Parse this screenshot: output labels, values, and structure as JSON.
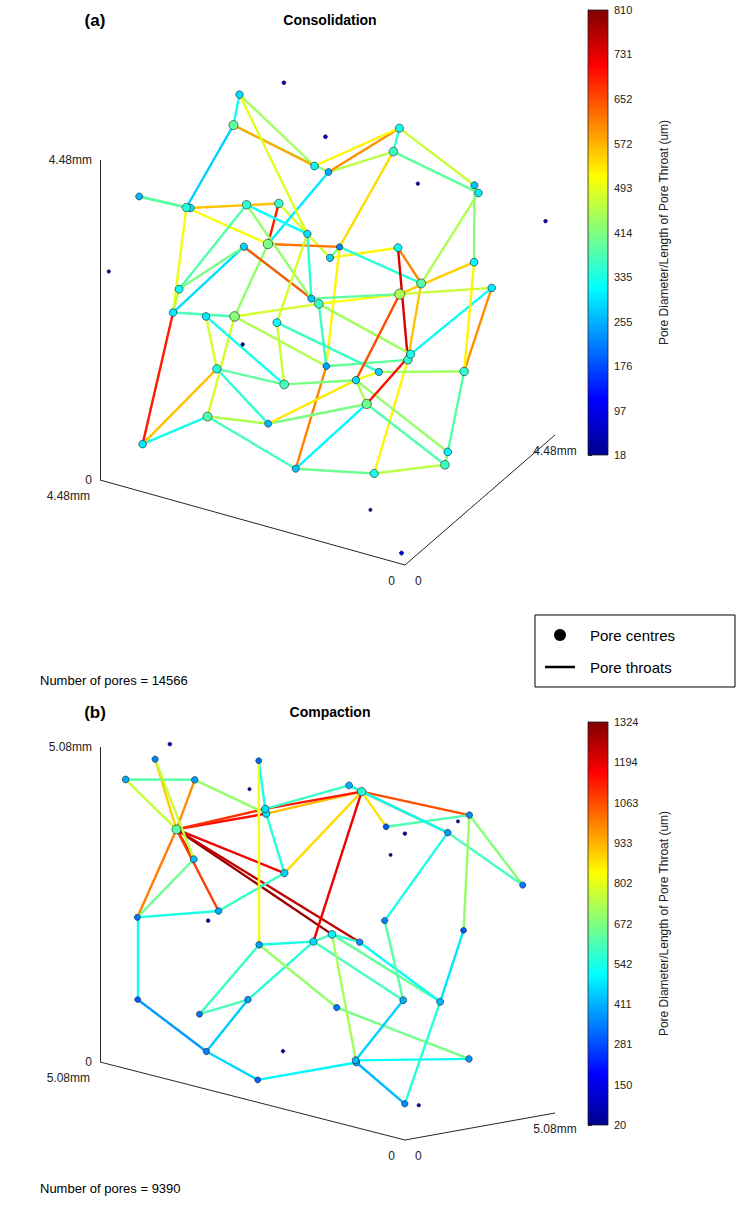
{
  "chart_data": [
    {
      "type": "scatter3d",
      "panel_label": "(a)",
      "title": "Consolidation",
      "annotation": "Number of pores = 14566",
      "xlim": [
        0,
        4.48
      ],
      "xticks": [
        0,
        {
          "value": 4.48,
          "label": "4.48mm"
        }
      ],
      "ylim": [
        0,
        4.48
      ],
      "yticks": [
        0,
        {
          "value": 4.48,
          "label": "4.48mm"
        }
      ],
      "zlim": [
        0,
        4.48
      ],
      "zticks": [
        0,
        {
          "value": 4.48,
          "label": "4.48mm"
        }
      ],
      "colorbar": {
        "range": [
          18,
          810
        ],
        "ticks": [
          18,
          97,
          176,
          255,
          335,
          414,
          493,
          572,
          652,
          731,
          810
        ],
        "label": "Pore Diameter/Length of Pore Throat (um)"
      },
      "legend": "bottom right",
      "series": [
        {
          "name": "Pore centres",
          "type": "scatter",
          "marker": "circle",
          "pores": {
            "x": [
              0.3,
              1.2,
              2.1,
              3.3,
              4.2,
              0.5,
              1.6,
              2.8,
              3.9,
              0.2,
              1.4,
              2.5,
              3.7,
              0.8,
              2.0,
              3.1,
              4.3,
              0.4,
              1.5,
              2.7,
              3.8,
              0.9,
              2.2,
              3.4,
              4.4,
              0.3,
              1.7,
              2.9,
              4.0,
              1.1,
              3.5,
              0.6,
              1.9,
              3.0,
              4.1,
              0.2,
              1.3,
              2.6,
              3.6,
              0.7,
              2.0,
              3.2,
              4.3,
              1.0,
              2.4,
              3.8,
              0.1,
              4.4,
              2.3,
              1.0,
              3.5,
              4.45,
              0.1,
              2.0
            ],
            "y": [
              0.4,
              0.2,
              0.5,
              0.3,
              0.6,
              1.5,
              1.3,
              1.6,
              1.4,
              2.6,
              2.5,
              2.8,
              2.4,
              3.7,
              3.9,
              3.6,
              3.8,
              0.9,
              0.7,
              0.4,
              0.8,
              2.0,
              1.9,
              2.1,
              2.2,
              3.2,
              3.3,
              3.1,
              3.4,
              4.3,
              4.2,
              0.3,
              0.6,
              0.2,
              0.5,
              1.6,
              1.5,
              1.2,
              1.7,
              2.7,
              2.6,
              2.9,
              2.8,
              3.8,
              4.1,
              3.9,
              4.4,
              0.1,
              2.3,
              1.0,
              3.5,
              4.2,
              0.1,
              4.45
            ],
            "z": [
              4.2,
              3.9,
              4.3,
              4.0,
              3.8,
              3.2,
              3.5,
              3.1,
              3.4,
              4.1,
              4.4,
              3.7,
              4.2,
              3.6,
              4.0,
              3.3,
              3.9,
              2.4,
              2.1,
              2.6,
              2.2,
              1.9,
              2.3,
              2.7,
              1.8,
              2.5,
              2.0,
              1.7,
              2.6,
              2.2,
              2.0,
              1.0,
              0.6,
              1.2,
              0.4,
              0.7,
              1.3,
              0.8,
              1.1,
              0.3,
              1.0,
              0.5,
              1.2,
              0.9,
              0.4,
              0.8,
              3.0,
              2.9,
              4.45,
              0.1,
              4.4,
              0.2,
              0.1,
              3.0
            ],
            "diameter": [
              320,
              280,
              350,
              300,
              260,
              380,
              220,
              410,
              340,
              300,
              360,
              250,
              390,
              270,
              330,
              310,
              290,
              350,
              240,
              420,
              300,
              330,
              360,
              280,
              320,
              300,
              450,
              270,
              350,
              310,
              290,
              330,
              270,
              380,
              300,
              360,
              400,
              260,
              340,
              310,
              290,
              370,
              300,
              350,
              280,
              320,
              60,
              45,
              80,
              40,
              70,
              55,
              90,
              50
            ]
          }
        },
        {
          "name": "Pore throats",
          "type": "line",
          "line_style": "solid",
          "throats": {
            "from": [
              0,
              1,
              2,
              3,
              0,
              1,
              2,
              3,
              4,
              5,
              6,
              7,
              5,
              6,
              7,
              8,
              9,
              10,
              11,
              9,
              10,
              11,
              12,
              13,
              14,
              15,
              12,
              0,
              5,
              6,
              7,
              8,
              17,
              18,
              19,
              17,
              18,
              19,
              20,
              21,
              22,
              23,
              20,
              21,
              22,
              23,
              24,
              25,
              26,
              27,
              26,
              27,
              28,
              13,
              16,
              17,
              18,
              19,
              20,
              31,
              32,
              33,
              31,
              32,
              33,
              34,
              35,
              36,
              37,
              35,
              36,
              37,
              38,
              38,
              39,
              40,
              41,
              39,
              40,
              41,
              43,
              44,
              25,
              29,
              30,
              21,
              26
            ],
            "to": [
              1,
              2,
              3,
              4,
              5,
              6,
              7,
              8,
              8,
              6,
              7,
              8,
              9,
              10,
              11,
              12,
              10,
              11,
              12,
              13,
              14,
              14,
              16,
              14,
              15,
              16,
              15,
              17,
              17,
              18,
              19,
              20,
              18,
              19,
              20,
              21,
              22,
              22,
              23,
              22,
              23,
              24,
              24,
              25,
              26,
              27,
              28,
              26,
              27,
              28,
              29,
              30,
              30,
              29,
              30,
              31,
              32,
              33,
              34,
              32,
              33,
              34,
              35,
              36,
              37,
              38,
              36,
              37,
              38,
              39,
              40,
              40,
              41,
              42,
              40,
              41,
              42,
              43,
              44,
              45,
              44,
              45,
              43,
              43,
              45,
              36,
              40
            ],
            "length": [
              520,
              480,
              560,
              430,
              610,
              400,
              690,
              470,
              380,
              350,
              620,
              510,
              450,
              540,
              300,
              280,
              390,
              460,
              420,
              480,
              350,
              600,
              330,
              470,
              520,
              440,
              580,
              740,
              560,
              520,
              430,
              500,
              390,
              450,
              370,
              420,
              360,
              480,
              290,
              440,
              350,
              410,
              460,
              320,
              510,
              640,
              380,
              470,
              390,
              430,
              550,
              350,
              320,
              420,
              490,
              520,
              610,
              480,
              690,
              400,
              370,
              330,
              460,
              310,
              450,
              560,
              380,
              410,
              350,
              420,
              450,
              530,
              390,
              480,
              430,
              410,
              330,
              380,
              500,
              470,
              440,
              360,
              600,
              520,
              480,
              700,
              650
            ]
          }
        }
      ]
    },
    {
      "type": "scatter3d",
      "panel_label": "(b)",
      "title": "Compaction",
      "annotation": "Number of pores = 9390",
      "xlim": [
        0,
        5.08
      ],
      "xticks": [
        0,
        {
          "value": 5.08,
          "label": "5.08mm"
        }
      ],
      "ylim": [
        0,
        5.08
      ],
      "yticks": [
        0,
        {
          "value": 5.08,
          "label": "5.08mm"
        }
      ],
      "zlim": [
        0,
        5.08
      ],
      "zticks": [
        0,
        {
          "value": 5.08,
          "label": "5.08mm"
        }
      ],
      "colorbar": {
        "range": [
          20,
          1324
        ],
        "ticks": [
          20,
          150,
          281,
          411,
          542,
          672,
          802,
          933,
          1063,
          1194,
          1324
        ],
        "label": "Pore Diameter/Length of Pore Throat (um)"
      },
      "series": [
        {
          "name": "Pore centres",
          "type": "scatter",
          "marker": "circle",
          "pores": {
            "x": [
              4.2,
              2.0,
              4.8,
              3.6,
              4.9,
              3.0,
              4.6,
              3.4,
              4.9,
              2.5,
              1.2,
              0.6,
              2.8,
              1.5,
              0.4,
              3.9,
              4.6,
              2.2,
              1.0,
              0.3,
              3.0,
              4.2,
              1.8,
              0.5,
              2.6,
              3.6,
              4.8,
              1.4,
              0.2,
              2.6,
              3.8,
              2.2,
              1.0,
              3.4,
              4.6,
              5.0,
              0.1,
              2.7,
              4.9,
              1.0,
              4.0,
              0.2,
              5.0
            ],
            "y": [
              0.8,
              2.6,
              0.3,
              0.2,
              1.5,
              1.4,
              2.2,
              0.6,
              0.9,
              1.0,
              1.8,
              3.4,
              3.8,
              4.5,
              4.8,
              3.2,
              4.4,
              2.0,
              0.5,
              1.8,
              3.0,
              3.6,
              3.6,
              3.0,
              4.6,
              2.0,
              2.8,
              1.2,
              0.4,
              0.3,
              1.0,
              2.8,
              4.2,
              4.6,
              0.3,
              4.9,
              0.2,
              5.0,
              2.0,
              2.5,
              4.0,
              2.2,
              3.5
            ],
            "z": [
              3.9,
              4.9,
              4.6,
              4.9,
              4.8,
              4.4,
              3.2,
              2.8,
              2.3,
              3.6,
              4.6,
              4.8,
              4.7,
              4.2,
              3.6,
              4.1,
              4.6,
              2.6,
              2.9,
              2.0,
              2.2,
              1.8,
              1.5,
              3.0,
              2.5,
              1.2,
              0.6,
              0.8,
              0.5,
              0.3,
              0.4,
              0.5,
              0.7,
              0.9,
              1.1,
              4.0,
              4.9,
              3.5,
              5.0,
              0.1,
              0.1,
              4.9,
              2.0
            ],
            "diameter": [
              620,
              560,
              400,
              380,
              350,
              470,
              420,
              390,
              330,
              450,
              300,
              360,
              410,
              380,
              340,
              470,
              320,
              500,
              370,
              420,
              460,
              390,
              410,
              300,
              350,
              380,
              330,
              400,
              360,
              310,
              350,
              420,
              380,
              340,
              300,
              60,
              90,
              45,
              110,
              70,
              80,
              50,
              100
            ]
          }
        },
        {
          "name": "Pore throats",
          "type": "line",
          "line_style": "solid",
          "throats": {
            "from": [
              0,
              0,
              0,
              0,
              0,
              0,
              0,
              0,
              0,
              0,
              0,
              1,
              1,
              1,
              1,
              1,
              1,
              1,
              1,
              2,
              3,
              4,
              5,
              6,
              7,
              7,
              10,
              11,
              12,
              13,
              12,
              15,
              16,
              17,
              17,
              17,
              18,
              19,
              20,
              20,
              22,
              23,
              24,
              25,
              25,
              25,
              27,
              27,
              29,
              27,
              31,
              32,
              33,
              30,
              26,
              22,
              28,
              34,
              17
            ],
            "to": [
              2,
              3,
              4,
              5,
              6,
              7,
              8,
              9,
              17,
              15,
              18,
              10,
              11,
              12,
              13,
              5,
              15,
              20,
              9,
              3,
              5,
              6,
              9,
              8,
              9,
              8,
              11,
              14,
              13,
              14,
              15,
              16,
              21,
              19,
              20,
              18,
              19,
              23,
              21,
              22,
              24,
              11,
              13,
              20,
              26,
              30,
              28,
              29,
              30,
              31,
              32,
              33,
              21,
              34,
              21,
              31,
              19,
              8,
              27
            ],
            "length": [
              760,
              980,
              900,
              1150,
              1210,
              1080,
              1000,
              1180,
              1290,
              1100,
              1240,
              870,
              1060,
              960,
              1020,
              920,
              1130,
              1180,
              880,
              620,
              700,
              760,
              560,
              650,
              580,
              540,
              610,
              680,
              520,
              600,
              580,
              540,
              820,
              640,
              600,
              560,
              520,
              480,
              540,
              600,
              620,
              700,
              540,
              560,
              600,
              440,
              420,
              500,
              460,
              560,
              520,
              660,
              700,
              380,
              580,
              450,
              560,
              520,
              720
            ]
          }
        }
      ]
    }
  ]
}
